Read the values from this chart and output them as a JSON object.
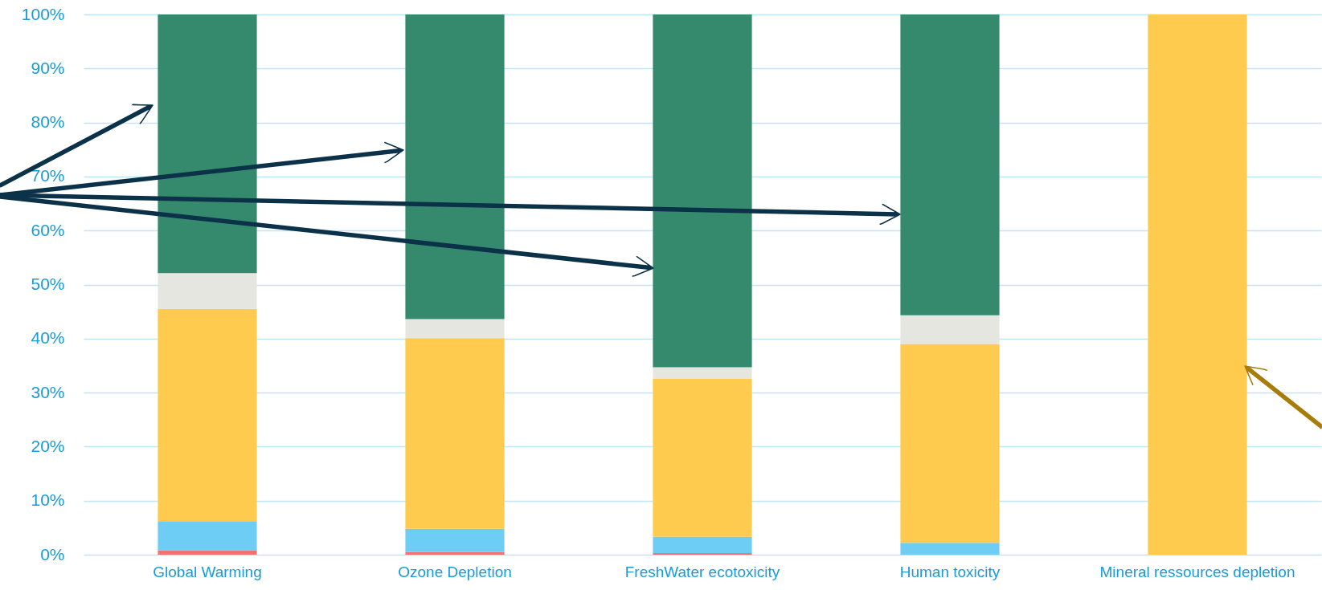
{
  "chart_data": {
    "type": "bar",
    "stacked": true,
    "categories": [
      "Global Warming",
      "Ozone Depletion",
      "FreshWater ecotoxicity",
      "Human toxicity",
      "Mineral ressources depletion"
    ],
    "series": [
      {
        "color": "#f0716f",
        "values": [
          0.8,
          0.5,
          0.3,
          0,
          0
        ]
      },
      {
        "color": "#6ecdf5",
        "values": [
          5.4,
          4.3,
          3.0,
          2.2,
          0
        ]
      },
      {
        "color": "#fecb4e",
        "values": [
          39.3,
          35.3,
          29.3,
          36.8,
          100
        ]
      },
      {
        "color": "#e6e6e1",
        "values": [
          6.6,
          3.5,
          2.1,
          5.3,
          0
        ]
      },
      {
        "color": "#358a6e",
        "values": [
          47.9,
          56.4,
          65.3,
          55.7,
          0
        ]
      }
    ],
    "ylim": [
      0,
      100
    ],
    "yticks": [
      {
        "value": 0,
        "label": "0%"
      },
      {
        "value": 10,
        "label": "10%"
      },
      {
        "value": 20,
        "label": "20%"
      },
      {
        "value": 30,
        "label": "30%"
      },
      {
        "value": 40,
        "label": "40%"
      },
      {
        "value": 50,
        "label": "50%"
      },
      {
        "value": 60,
        "label": "60%"
      },
      {
        "value": 70,
        "label": "70%"
      },
      {
        "value": 80,
        "label": "80%"
      },
      {
        "value": 90,
        "label": "90%"
      },
      {
        "value": 100,
        "label": "100%"
      }
    ],
    "grid": "y"
  }
}
